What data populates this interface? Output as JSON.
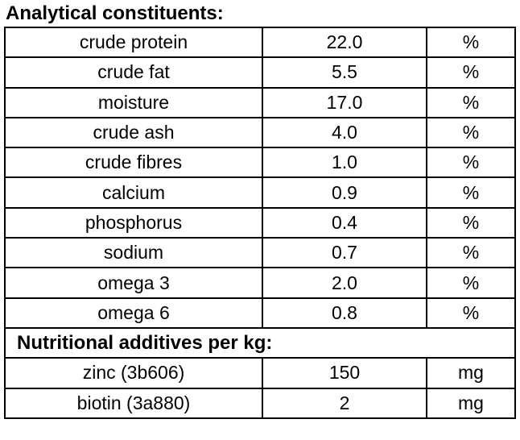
{
  "title": "Analytical constituents:",
  "colors": {
    "border": "#000000",
    "text": "#000000",
    "background": "#ffffff"
  },
  "analytical": {
    "rows": [
      {
        "name": "crude protein",
        "value": "22.0",
        "unit": "%"
      },
      {
        "name": "crude fat",
        "value": "5.5",
        "unit": "%"
      },
      {
        "name": "moisture",
        "value": "17.0",
        "unit": "%"
      },
      {
        "name": "crude ash",
        "value": "4.0",
        "unit": "%"
      },
      {
        "name": "crude fibres",
        "value": "1.0",
        "unit": "%"
      },
      {
        "name": "calcium",
        "value": "0.9",
        "unit": "%"
      },
      {
        "name": "phosphorus",
        "value": "0.4",
        "unit": "%"
      },
      {
        "name": "sodium",
        "value": "0.7",
        "unit": "%"
      },
      {
        "name": "omega 3",
        "value": "2.0",
        "unit": "%"
      },
      {
        "name": "omega 6",
        "value": "0.8",
        "unit": "%"
      }
    ]
  },
  "additives": {
    "header": "Nutritional additives per kg:",
    "rows": [
      {
        "name": "zinc (3b606)",
        "value": "150",
        "unit": "mg"
      },
      {
        "name": "biotin (3a880)",
        "value": "2",
        "unit": "mg"
      }
    ]
  }
}
